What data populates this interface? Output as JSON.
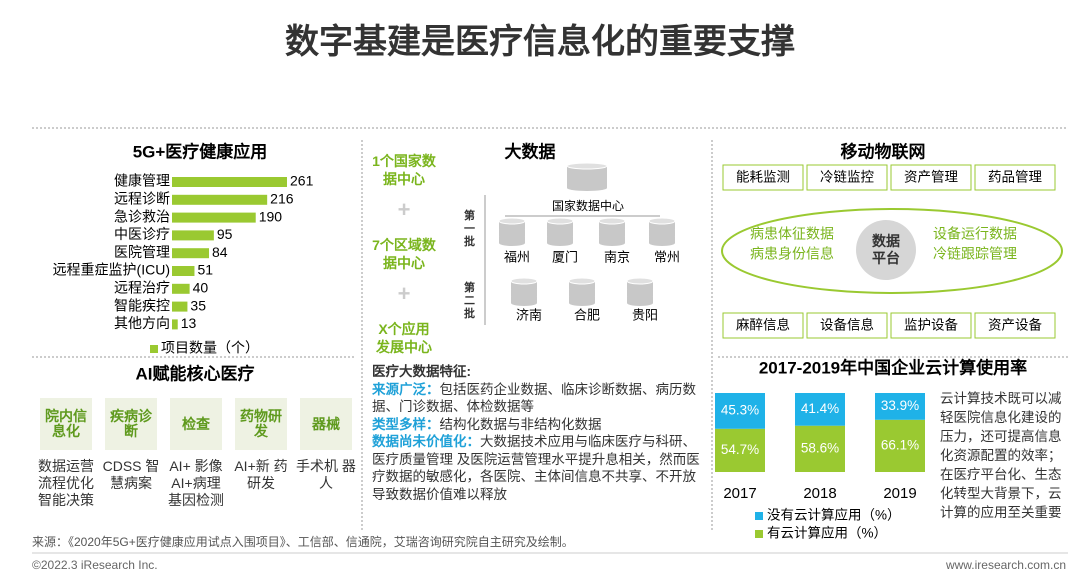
{
  "title": "数字基建是医疗信息化的重要支撑",
  "chart_data": [
    {
      "type": "hbar",
      "title": "5G+医疗健康应用",
      "categories": [
        "健康管理",
        "远程诊断",
        "急诊救治",
        "中医诊疗",
        "医院管理",
        "远程重症监护(ICU)",
        "远程治疗",
        "智能疾控",
        "其他方向"
      ],
      "series": [
        {
          "name": "项目数量（个）",
          "color": "#9ac931",
          "values": [
            261,
            216,
            190,
            95,
            84,
            51,
            40,
            35,
            13
          ]
        }
      ]
    },
    {
      "type": "stacked_bar",
      "title": "2017-2019年中国企业云计算使用率",
      "categories": [
        "2017",
        "2018",
        "2019"
      ],
      "series": [
        {
          "name": "有云计算应用（%）",
          "color": "#9ac931",
          "values": [
            54.7,
            58.6,
            66.1
          ],
          "value_labels": [
            "54.7%",
            "58.6%",
            "66.1%"
          ]
        },
        {
          "name": "没有云计算应用（%）",
          "color": "#1fb2e8",
          "values": [
            45.3,
            41.4,
            33.9
          ],
          "value_labels": [
            "45.3%",
            "41.4%",
            "33.9%"
          ]
        }
      ]
    }
  ],
  "ai": {
    "title": "AI赋能核心医疗",
    "items": [
      {
        "label": "院内信息化",
        "desc": "数据运营流程优化智能决策"
      },
      {
        "label": "疾病诊断",
        "desc": "CDSS 智慧病案"
      },
      {
        "label": "检查",
        "desc": "AI+ 影像 AI+病理 基因检测"
      },
      {
        "label": "药物研发",
        "desc": "AI+新 药研发"
      },
      {
        "label": "器械",
        "desc": "手术机 器人"
      }
    ]
  },
  "big_data": {
    "title": "大数据",
    "centers": [
      "1个国家数据中心",
      "7个区域数据中心",
      "X个应用发展中心"
    ],
    "plus": "+",
    "national": "国家数据中心",
    "batch1": "第一批",
    "batch1_cities": [
      "福州",
      "厦门",
      "南京",
      "常州"
    ],
    "batch2": "第二批",
    "batch2_cities": [
      "济南",
      "合肥",
      "贵阳"
    ],
    "features_title": "医疗大数据特征:",
    "features": [
      {
        "label": "来源广泛：",
        "text": "包括医药企业数据、临床诊断数据、病历数据、门诊数据、体检数据等"
      },
      {
        "label": "类型多样：",
        "text": "结构化数据与非结构化数据"
      },
      {
        "label": "数据尚未价值化：",
        "text": "大数据技术应用与临床医疗与科研、医疗质量管理 及医院运营管理水平提升息相关，然而医疗数据的敏感化，各医院、主体间信息不共享、不开放导致数据价值难以释放"
      }
    ]
  },
  "iot": {
    "title": "移动物联网",
    "top": [
      "能耗监测",
      "冷链监控",
      "资产管理",
      "药品管理"
    ],
    "left": [
      "病患体征数据",
      "病患身份信息"
    ],
    "center": "数据平台",
    "right": [
      "设备运行数据",
      "冷链跟踪管理"
    ],
    "bottom": [
      "麻醉信息",
      "设备信息",
      "监护设备",
      "资产设备"
    ]
  },
  "cloud_note": "云计算技术既可以减轻医院信息化建设的压力，还可提高信息化资源配置的效率；在医疗平台化、生态化转型大背景下，云计算的应用至关重要",
  "source": "来源：《2020年5G+医疗健康应用试点入围项目》、工信部、信通院，艾瑞咨询研究院自主研究及绘制。",
  "copyright": "©2022.3 iResearch Inc.",
  "website": "www.iresearch.com.cn"
}
